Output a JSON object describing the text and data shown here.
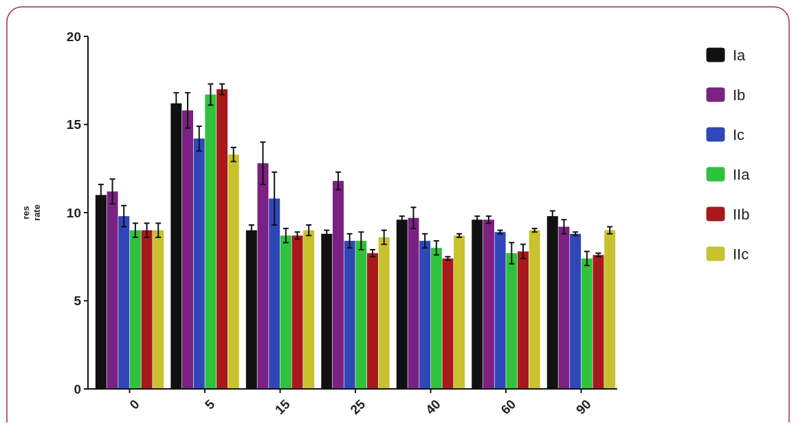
{
  "chart_data": {
    "type": "bar",
    "ylabel": "res\nrate",
    "categories": [
      "0",
      "5",
      "15",
      "25",
      "40",
      "60",
      "90"
    ],
    "ylim": [
      0,
      20
    ],
    "yticks": [
      0,
      5,
      10,
      15,
      20
    ],
    "grid": false,
    "legend": "right",
    "series": [
      {
        "name": "Ia",
        "color": "#111111",
        "values": [
          11.0,
          16.2,
          9.0,
          8.8,
          9.6,
          9.6,
          9.8
        ],
        "errors": [
          0.6,
          0.6,
          0.3,
          0.2,
          0.2,
          0.2,
          0.3
        ]
      },
      {
        "name": "Ib",
        "color": "#7b2183",
        "values": [
          11.2,
          15.8,
          12.8,
          11.8,
          9.7,
          9.6,
          9.2
        ],
        "errors": [
          0.7,
          1.0,
          1.2,
          0.5,
          0.6,
          0.2,
          0.4
        ]
      },
      {
        "name": "Ic",
        "color": "#2f47b8",
        "values": [
          9.8,
          14.2,
          10.8,
          8.4,
          8.4,
          8.9,
          8.8
        ],
        "errors": [
          0.6,
          0.7,
          1.5,
          0.4,
          0.4,
          0.1,
          0.1
        ]
      },
      {
        "name": "IIa",
        "color": "#2fc23c",
        "values": [
          9.0,
          16.7,
          8.7,
          8.4,
          8.0,
          7.7,
          7.4
        ],
        "errors": [
          0.4,
          0.6,
          0.4,
          0.5,
          0.4,
          0.6,
          0.4
        ]
      },
      {
        "name": "IIb",
        "color": "#a8191c",
        "values": [
          9.0,
          17.0,
          8.7,
          7.7,
          7.4,
          7.8,
          7.6
        ],
        "errors": [
          0.4,
          0.3,
          0.2,
          0.2,
          0.1,
          0.4,
          0.1
        ]
      },
      {
        "name": "IIc",
        "color": "#c8c22e",
        "values": [
          9.0,
          13.3,
          9.0,
          8.6,
          8.7,
          9.0,
          9.0
        ],
        "errors": [
          0.4,
          0.4,
          0.3,
          0.4,
          0.1,
          0.1,
          0.2
        ]
      }
    ]
  }
}
